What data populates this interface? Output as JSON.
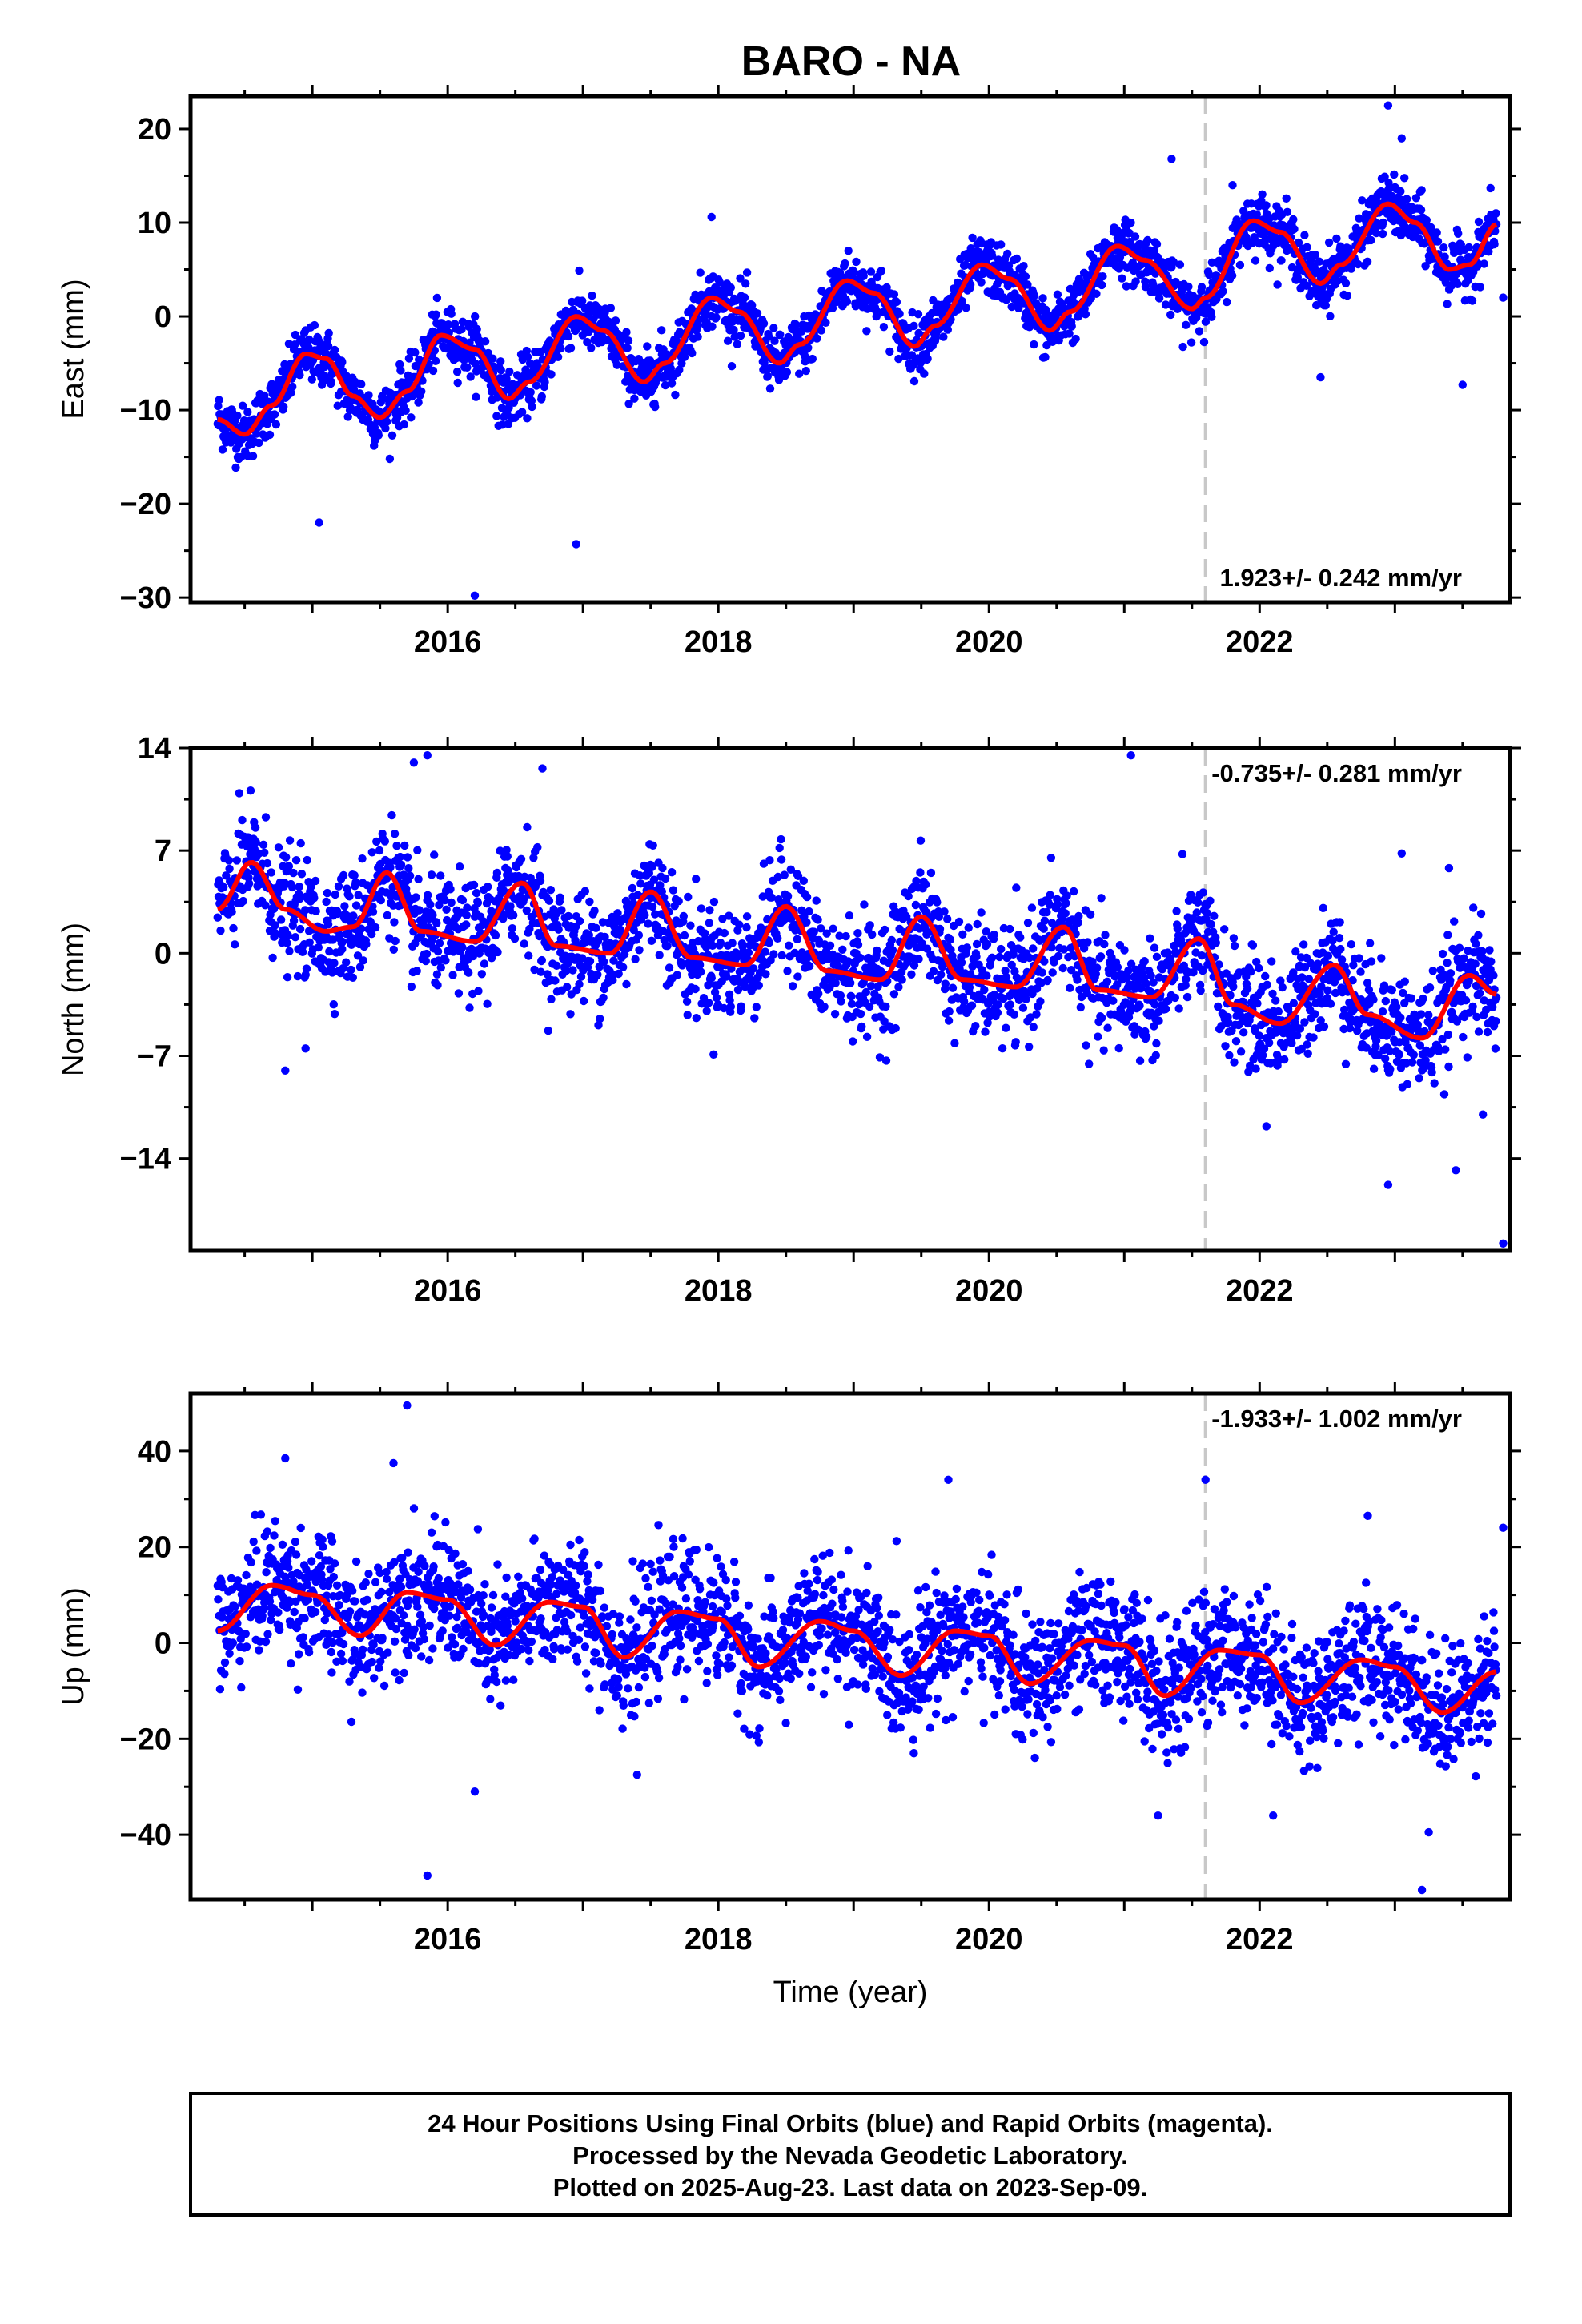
{
  "figure": {
    "title": "BARO - NA",
    "footer": [
      "24 Hour Positions Using Final Orbits (blue) and Rapid Orbits (magenta).",
      "Processed by the Nevada Geodetic Laboratory.",
      "Plotted on 2025-Aug-23. Last data on 2023-Sep-09."
    ],
    "colors": {
      "points": "#0000ff",
      "fit": "#ff0000",
      "marker": "#c8c8c8",
      "frame": "#000000"
    }
  },
  "chart_data": [
    {
      "type": "scatter",
      "panel": "east",
      "title": "BARO - NA",
      "xlabel": "",
      "ylabel": "East (mm)",
      "xlim": [
        2014.1,
        2023.85
      ],
      "ylim": [
        -30.5,
        23.5
      ],
      "xticks": [
        2016,
        2018,
        2020,
        2022
      ],
      "xtick_labels": [
        "2016",
        "2018",
        "2020",
        "2022"
      ],
      "yticks": [
        20,
        10,
        0,
        -10,
        -20,
        -30
      ],
      "ytick_labels": [
        "20",
        "10",
        "0",
        "−10",
        "−20",
        "−30"
      ],
      "rate_text": "1.923+/- 0.242 mm/yr",
      "rate_position": "bottom-right",
      "equipment_change": 2021.6,
      "seasonal_fit": [
        [
          2014.3,
          -11.0
        ],
        [
          2014.5,
          -12.6
        ],
        [
          2014.7,
          -9.5
        ],
        [
          2014.95,
          -4.0
        ],
        [
          2015.1,
          -4.5
        ],
        [
          2015.3,
          -8.5
        ],
        [
          2015.5,
          -10.8
        ],
        [
          2015.7,
          -8.0
        ],
        [
          2015.95,
          -2.0
        ],
        [
          2016.2,
          -3.5
        ],
        [
          2016.45,
          -8.8
        ],
        [
          2016.6,
          -7.0
        ],
        [
          2016.95,
          0.0
        ],
        [
          2017.15,
          -1.5
        ],
        [
          2017.45,
          -7.0
        ],
        [
          2017.6,
          -5.0
        ],
        [
          2017.95,
          2.0
        ],
        [
          2018.15,
          0.5
        ],
        [
          2018.45,
          -5.0
        ],
        [
          2018.6,
          -3.0
        ],
        [
          2018.95,
          3.8
        ],
        [
          2019.15,
          2.5
        ],
        [
          2019.45,
          -3.2
        ],
        [
          2019.6,
          -1.0
        ],
        [
          2019.95,
          5.5
        ],
        [
          2020.15,
          4.0
        ],
        [
          2020.45,
          -1.5
        ],
        [
          2020.6,
          0.5
        ],
        [
          2020.95,
          7.5
        ],
        [
          2021.15,
          6.0
        ],
        [
          2021.5,
          0.8
        ],
        [
          2021.6,
          2.0
        ],
        [
          2021.95,
          10.2
        ],
        [
          2022.15,
          9.0
        ],
        [
          2022.45,
          3.5
        ],
        [
          2022.6,
          5.5
        ],
        [
          2022.95,
          12.0
        ],
        [
          2023.15,
          10.0
        ],
        [
          2023.4,
          5.0
        ],
        [
          2023.55,
          5.5
        ],
        [
          2023.75,
          9.8
        ]
      ],
      "outliers": [
        [
          2015.05,
          -22.0
        ],
        [
          2016.95,
          -24.3
        ],
        [
          2016.2,
          -29.8
        ],
        [
          2017.95,
          10.6
        ],
        [
          2021.35,
          16.8
        ],
        [
          2022.95,
          22.5
        ],
        [
          2023.05,
          19.0
        ],
        [
          2022.45,
          -6.5
        ],
        [
          2023.5,
          -7.3
        ],
        [
          2021.8,
          14.0
        ],
        [
          2023.8,
          2.0
        ]
      ],
      "noise_sd": 1.5
    },
    {
      "type": "scatter",
      "panel": "north",
      "xlabel": "",
      "ylabel": "North (mm)",
      "xlim": [
        2014.1,
        2023.85
      ],
      "ylim": [
        -20.3,
        14.0
      ],
      "xticks": [
        2016,
        2018,
        2020,
        2022
      ],
      "xtick_labels": [
        "2016",
        "2018",
        "2020",
        "2022"
      ],
      "yticks": [
        14,
        7,
        0,
        -7,
        -14
      ],
      "ytick_labels": [
        "14",
        "7",
        "0",
        "−7",
        "−14"
      ],
      "rate_text": "-0.735+/- 0.281 mm/yr",
      "rate_position": "top-right",
      "equipment_change": 2021.6,
      "seasonal_fit": [
        [
          2014.3,
          3.0
        ],
        [
          2014.55,
          6.2
        ],
        [
          2014.8,
          3.0
        ],
        [
          2015.1,
          1.5
        ],
        [
          2015.3,
          1.8
        ],
        [
          2015.55,
          5.5
        ],
        [
          2015.8,
          1.5
        ],
        [
          2016.2,
          0.8
        ],
        [
          2016.55,
          4.8
        ],
        [
          2016.8,
          0.5
        ],
        [
          2017.2,
          0.0
        ],
        [
          2017.5,
          4.2
        ],
        [
          2017.8,
          -0.3
        ],
        [
          2018.2,
          -0.8
        ],
        [
          2018.5,
          3.2
        ],
        [
          2018.8,
          -1.2
        ],
        [
          2019.2,
          -1.8
        ],
        [
          2019.5,
          2.5
        ],
        [
          2019.8,
          -1.8
        ],
        [
          2020.2,
          -2.3
        ],
        [
          2020.55,
          1.8
        ],
        [
          2020.8,
          -2.5
        ],
        [
          2021.2,
          -3.0
        ],
        [
          2021.55,
          1.0
        ],
        [
          2021.8,
          -3.5
        ],
        [
          2022.15,
          -4.8
        ],
        [
          2022.55,
          -0.8
        ],
        [
          2022.8,
          -4.2
        ],
        [
          2023.2,
          -5.8
        ],
        [
          2023.55,
          -1.5
        ],
        [
          2023.75,
          -2.8
        ]
      ],
      "outliers": [
        [
          2014.8,
          -8.0
        ],
        [
          2014.95,
          -6.5
        ],
        [
          2015.75,
          13.0
        ],
        [
          2015.85,
          13.5
        ],
        [
          2016.7,
          12.6
        ],
        [
          2021.05,
          13.5
        ],
        [
          2022.05,
          -11.8
        ],
        [
          2022.95,
          -15.8
        ],
        [
          2023.45,
          -14.8
        ],
        [
          2023.8,
          -19.8
        ],
        [
          2023.05,
          6.8
        ],
        [
          2023.4,
          5.8
        ],
        [
          2023.65,
          -11.0
        ]
      ],
      "noise_sd": 1.9
    },
    {
      "type": "scatter",
      "panel": "up",
      "xlabel": "Time (year)",
      "ylabel": "Up (mm)",
      "xlim": [
        2014.1,
        2023.85
      ],
      "ylim": [
        -53.5,
        52.0
      ],
      "xticks": [
        2016,
        2018,
        2020,
        2022
      ],
      "xtick_labels": [
        "2016",
        "2018",
        "2020",
        "2022"
      ],
      "yticks": [
        40,
        20,
        0,
        -20,
        -40
      ],
      "ytick_labels": [
        "40",
        "20",
        "0",
        "−20",
        "−40"
      ],
      "rate_text": "-1.933+/- 1.002 mm/yr",
      "rate_position": "top-right",
      "equipment_change": 2021.6,
      "seasonal_fit": [
        [
          2014.3,
          2.5
        ],
        [
          2014.7,
          12.0
        ],
        [
          2015.0,
          10.0
        ],
        [
          2015.35,
          1.5
        ],
        [
          2015.7,
          10.5
        ],
        [
          2016.0,
          9.0
        ],
        [
          2016.35,
          -0.5
        ],
        [
          2016.75,
          8.5
        ],
        [
          2017.0,
          7.5
        ],
        [
          2017.3,
          -3.0
        ],
        [
          2017.7,
          6.5
        ],
        [
          2018.0,
          5.0
        ],
        [
          2018.3,
          -5.0
        ],
        [
          2018.75,
          4.5
        ],
        [
          2019.0,
          2.5
        ],
        [
          2019.35,
          -6.8
        ],
        [
          2019.75,
          2.5
        ],
        [
          2020.0,
          1.5
        ],
        [
          2020.3,
          -8.5
        ],
        [
          2020.75,
          0.5
        ],
        [
          2021.0,
          -0.5
        ],
        [
          2021.3,
          -11.0
        ],
        [
          2021.7,
          -1.5
        ],
        [
          2022.0,
          -2.5
        ],
        [
          2022.3,
          -12.5
        ],
        [
          2022.75,
          -3.5
        ],
        [
          2023.0,
          -5.0
        ],
        [
          2023.35,
          -14.5
        ],
        [
          2023.75,
          -6.0
        ]
      ],
      "outliers": [
        [
          2015.7,
          49.5
        ],
        [
          2015.6,
          37.5
        ],
        [
          2014.8,
          38.5
        ],
        [
          2015.85,
          -48.5
        ],
        [
          2016.2,
          -31.0
        ],
        [
          2017.4,
          -27.5
        ],
        [
          2019.7,
          34.0
        ],
        [
          2021.6,
          34.0
        ],
        [
          2023.2,
          -51.5
        ],
        [
          2023.25,
          -39.5
        ],
        [
          2022.1,
          -36.0
        ],
        [
          2021.25,
          -36.0
        ],
        [
          2022.8,
          26.5
        ],
        [
          2023.8,
          24.0
        ]
      ],
      "noise_sd": 6.5
    }
  ]
}
